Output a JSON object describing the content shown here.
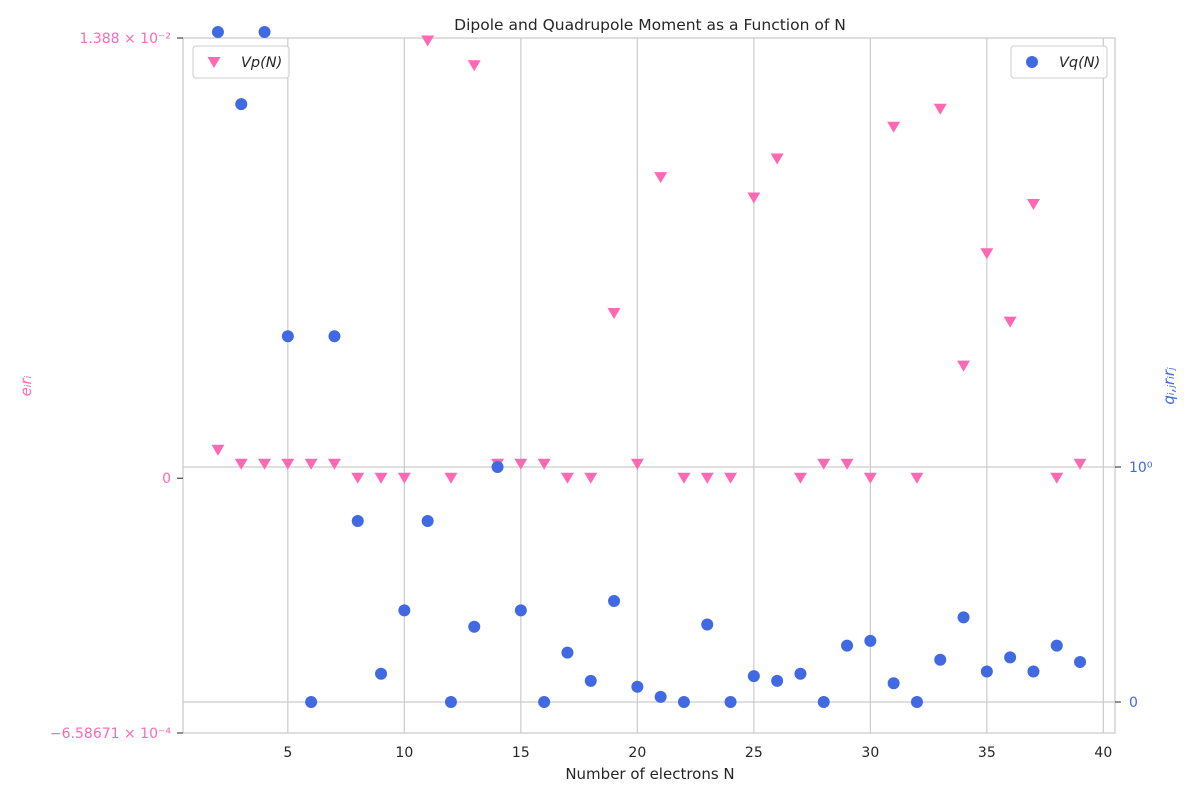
{
  "chart_data": {
    "type": "scatter",
    "title": "Dipole and Quadrupole Moment as a Function of N",
    "xlabel": "Number of electrons N",
    "xlim": [
      0.5,
      40.5
    ],
    "x_ticks": [
      5,
      10,
      15,
      20,
      25,
      30,
      35,
      40
    ],
    "x_tick_labels": [
      "5",
      "10",
      "15",
      "20",
      "25",
      "30",
      "35",
      "40"
    ],
    "grid": true,
    "left_axis": {
      "label": "e_i r_i",
      "label_display": "eᵢrᵢ",
      "color": "#ff69b4",
      "scale": "symlog",
      "ylim": [
        -0.000658671,
        0.01388
      ],
      "ticks": [
        {
          "value": 0.01388,
          "label": "1.388 × 10⁻²"
        },
        {
          "value": 0,
          "label": "0"
        },
        {
          "value": -0.000658671,
          "label": "−6.58671 × 10⁻⁴"
        }
      ]
    },
    "right_axis": {
      "label": "q_ij r_i r_j",
      "label_display": "qᵢ,ⱼrᵢrⱼ",
      "color": "#4169e1",
      "scale": "symlog",
      "ticks": [
        {
          "value": 1,
          "label": "10⁰"
        },
        {
          "value": 0,
          "label": "0"
        }
      ]
    },
    "series": [
      {
        "name": "V_p(N)",
        "name_display": "Vp(N)",
        "axis": "left",
        "marker": "triangle-down",
        "color": "#ff69b4",
        "legend_position": "upper left",
        "x": [
          2,
          3,
          4,
          5,
          6,
          7,
          8,
          9,
          10,
          11,
          12,
          13,
          14,
          15,
          16,
          17,
          18,
          19,
          20,
          21,
          22,
          23,
          24,
          25,
          26,
          27,
          28,
          29,
          30,
          31,
          32,
          33,
          34,
          35,
          36,
          37,
          38,
          39
        ],
        "y": [
          2e-05,
          1e-05,
          1e-05,
          1e-05,
          1e-05,
          1e-05,
          0,
          0,
          0,
          0.0132,
          0,
          0.0088,
          1e-05,
          1e-05,
          1e-05,
          0,
          0,
          0.00015,
          1e-05,
          0.0014,
          0,
          0,
          0,
          0.001,
          0.0019,
          0,
          1e-05,
          1e-05,
          0,
          0.0032,
          0,
          0.0043,
          8e-05,
          0.0004,
          0.00013,
          0.0009,
          0,
          1e-05
        ]
      },
      {
        "name": "V_q(N)",
        "name_display": "Vq(N)",
        "axis": "right",
        "marker": "circle",
        "color": "#4169e1",
        "legend_position": "upper right",
        "x": [
          2,
          3,
          4,
          5,
          6,
          7,
          8,
          9,
          10,
          11,
          12,
          13,
          14,
          15,
          16,
          17,
          18,
          19,
          20,
          21,
          22,
          23,
          24,
          25,
          26,
          27,
          28,
          29,
          30,
          31,
          32,
          33,
          34,
          35,
          36,
          37,
          38,
          39
        ],
        "y": [
          71,
          35,
          71,
          3.6,
          0,
          3.6,
          0.77,
          0.12,
          0.39,
          0.77,
          0,
          0.32,
          1.0,
          0.39,
          0,
          0.21,
          0.09,
          0.43,
          0.065,
          0.022,
          0,
          0.33,
          0,
          0.11,
          0.09,
          0.12,
          0,
          0.24,
          0.26,
          0.08,
          0,
          0.18,
          0.36,
          0.13,
          0.19,
          0.13,
          0.24,
          0.17
        ]
      }
    ]
  }
}
